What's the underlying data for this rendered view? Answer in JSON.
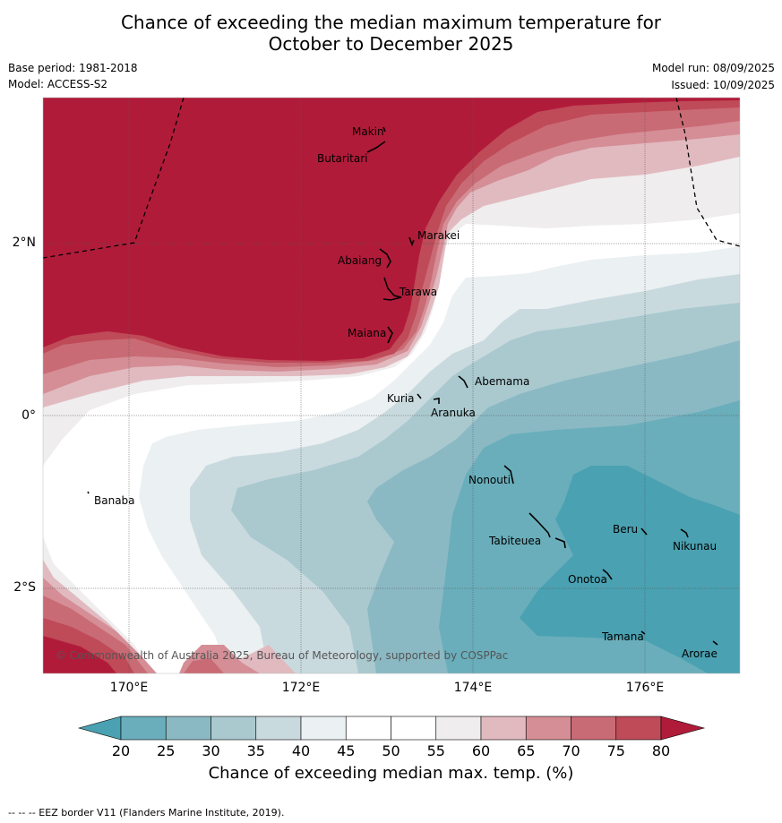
{
  "header": {
    "title_line1": "Chance of exceeding the median maximum temperature for",
    "title_line2": "October to December 2025",
    "base_period": "Base period: 1981-2018",
    "model": "Model: ACCESS-S2",
    "model_run": "Model run: 08/09/2025",
    "issued": "Issued: 10/09/2025"
  },
  "map": {
    "lat_labels": [
      "2°N",
      "0°",
      "2°S"
    ],
    "lon_labels": [
      "170°E",
      "172°E",
      "174°E",
      "176°E"
    ],
    "copyright": "© Commonwealth of Australia 2025, Bureau of Meteorology, supported by COSPPac",
    "places": [
      "Makin",
      "Butaritari",
      "Marakei",
      "Abaiang",
      "Tarawa",
      "Maiana",
      "Abemama",
      "Kuria",
      "Aranuka",
      "Banaba",
      "Nonouti",
      "Beru",
      "Nikunau",
      "Tabiteuea",
      "Onotoa",
      "Tamana",
      "Arorae"
    ]
  },
  "colorbar": {
    "ticks": [
      "20",
      "25",
      "30",
      "35",
      "40",
      "45",
      "50",
      "55",
      "60",
      "65",
      "70",
      "75",
      "80"
    ],
    "label": "Chance of exceeding median max. temp. (%)",
    "colors": [
      "#4aa1b1",
      "#6aaebb",
      "#8ab9c4",
      "#a9c9cf",
      "#c9dadf",
      "#ebf0f2",
      "#ffffff",
      "#ffffff",
      "#efedee",
      "#e1bac0",
      "#d58e96",
      "#c96b75",
      "#bf4a58",
      "#b11b3a"
    ]
  },
  "footer": {
    "legend": "--  --  -- EEZ border V11 (Flanders Marine Institute, 2019)."
  }
}
